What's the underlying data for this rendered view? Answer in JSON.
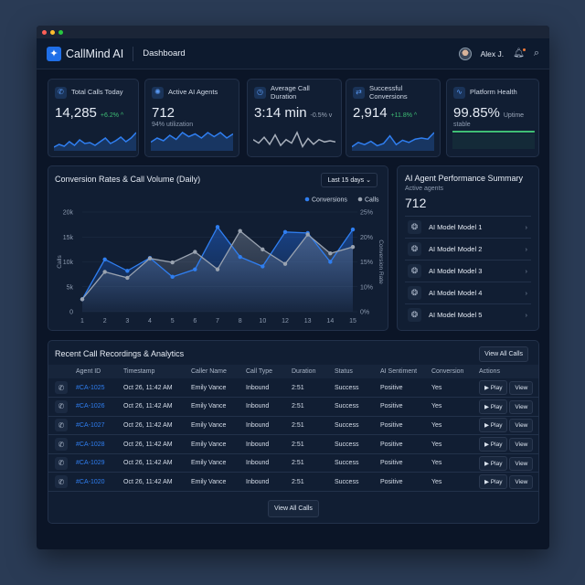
{
  "header": {
    "brand": "CallMind AI",
    "breadcrumb": "Dashboard",
    "user": "Alex J."
  },
  "kpis": [
    {
      "label": "Total Calls Today",
      "value": "14,285",
      "delta": "+6.2% ^",
      "delta_color": "#3fbf75",
      "sub": "",
      "icon": "phone-icon",
      "spark": [
        2,
        5,
        3,
        8,
        4,
        10,
        6,
        7,
        4,
        8,
        12,
        6,
        9,
        13,
        8,
        12,
        18
      ],
      "spark_color": "#2f7ef0"
    },
    {
      "label": "Active AI Agents",
      "value": "712",
      "delta": "",
      "sub": "94% utilization",
      "icon": "brain-icon",
      "spark": [
        5,
        8,
        6,
        10,
        7,
        12,
        9,
        11,
        8,
        12,
        9,
        12,
        8,
        11
      ],
      "spark_color": "#2f7ef0"
    },
    {
      "label": "Average Call Duration",
      "value": "3:14 min",
      "delta": "-0.5% v",
      "delta_color": "#9aa6b8",
      "sub": "",
      "icon": "clock-icon",
      "spark": [
        8,
        5,
        10,
        4,
        12,
        3,
        8,
        5,
        14,
        2,
        9,
        4,
        8,
        6,
        7,
        6
      ],
      "spark_color": "#a8b0bc"
    },
    {
      "label": "Successful Conversions",
      "value": "2,914",
      "delta": "+11.8% ^",
      "delta_color": "#3fbf75",
      "sub": "",
      "icon": "refresh-icon",
      "spark": [
        2,
        6,
        4,
        7,
        3,
        5,
        12,
        4,
        8,
        6,
        9,
        10,
        9,
        15
      ],
      "spark_color": "#2f7ef0"
    },
    {
      "label": "Platform Health",
      "value": "99.85%",
      "delta": "Uptime",
      "delta_color": "#9aa6b8",
      "sub": "stable",
      "icon": "pulse-icon",
      "health": 0.9985,
      "spark_color": "#3fbf75"
    }
  ],
  "chart_data": {
    "type": "line",
    "title": "Conversion Rates & Call Volume (Daily)",
    "range_select": "Last 15 days",
    "categories": [
      "1",
      "2",
      "3",
      "4",
      "5",
      "6",
      "7",
      "8",
      "10",
      "12",
      "13",
      "14",
      "15"
    ],
    "ylabel": "Calls",
    "y2label": "Conversion Rate",
    "yticks": [
      "0",
      "5k",
      "10k",
      "15k",
      "20k"
    ],
    "y2ticks": [
      "0%",
      "10%",
      "15%",
      "20%",
      "25%"
    ],
    "ylim": [
      0,
      20000
    ],
    "series": [
      {
        "name": "Conversions",
        "axis": "right",
        "color": "#2f7ef0",
        "values": [
          5,
          15.5,
          13.2,
          15.8,
          12,
          13.5,
          22,
          16,
          14.1,
          21,
          20.8,
          15,
          21.5
        ]
      },
      {
        "name": "Calls",
        "axis": "left",
        "color": "#9aa3b0",
        "values": [
          2500,
          8000,
          6800,
          10700,
          9900,
          12000,
          8500,
          16200,
          12500,
          9600,
          15500,
          11700,
          13000
        ]
      }
    ],
    "legend": "top-right",
    "grid": true
  },
  "summary": {
    "title": "AI Agent Performance Summary",
    "sub": "Active agents",
    "value": "712",
    "models": [
      "AI Model Model 1",
      "AI Model Model 2",
      "AI Model Model 3",
      "AI Model Model 4",
      "AI Model Model 5"
    ]
  },
  "table": {
    "title": "Recent Call Recordings & Analytics",
    "view_all": "View All Calls",
    "footer_btn": "View All Calls",
    "columns": [
      "Agent ID",
      "Timestamp",
      "Caller Name",
      "Call Type",
      "Duration",
      "Status",
      "AI Sentiment",
      "Conversion",
      "Actions"
    ],
    "play": "▶ Play",
    "view": "View",
    "rows": [
      [
        "#CA-1025",
        "Oct 26, 11:42 AM",
        "Emily Vance",
        "Inbound",
        "2:51",
        "Success",
        "Positive",
        "Yes"
      ],
      [
        "#CA-1026",
        "Oct 26, 11:42 AM",
        "Emily Vance",
        "Inbound",
        "2:51",
        "Success",
        "Positive",
        "Yes"
      ],
      [
        "#CA-1027",
        "Oct 26, 11:42 AM",
        "Emily Vance",
        "Inbound",
        "2:51",
        "Success",
        "Positive",
        "Yes"
      ],
      [
        "#CA-1028",
        "Oct 26, 11:42 AM",
        "Emily Vance",
        "Inbound",
        "2:51",
        "Success",
        "Positive",
        "Yes"
      ],
      [
        "#CA-1029",
        "Oct 26, 11:42 AM",
        "Emily Vance",
        "Inbound",
        "2:51",
        "Success",
        "Positive",
        "Yes"
      ],
      [
        "#CA-1020",
        "Oct 26, 11:42 AM",
        "Emily Vance",
        "Inbound",
        "2:51",
        "Success",
        "Positive",
        "Yes"
      ]
    ]
  }
}
